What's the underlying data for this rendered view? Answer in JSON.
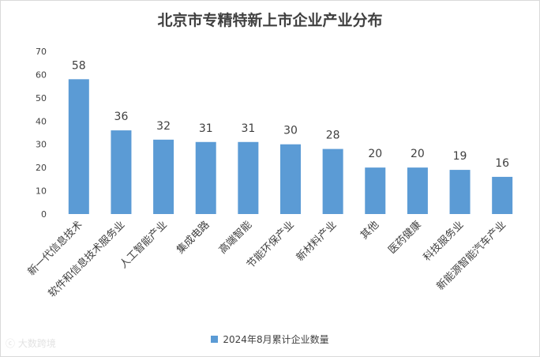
{
  "chart_data": {
    "type": "bar",
    "title": "北京市专精特新上市企业产业分布",
    "categories": [
      "新一代信息技术",
      "软件和信息技术服务业",
      "人工智能产业",
      "集成电路",
      "高端智能",
      "节能环保产业",
      "新材料产业",
      "其他",
      "医药健康",
      "科技服务业",
      "新能源智能汽车产业"
    ],
    "series": [
      {
        "name": "2024年8月累计企业数量",
        "values": [
          58,
          36,
          32,
          31,
          31,
          30,
          28,
          20,
          20,
          19,
          16
        ]
      }
    ],
    "ylim": [
      0,
      70
    ],
    "yticks": [
      0,
      10,
      20,
      30,
      40,
      50,
      60,
      70
    ],
    "grid": false,
    "legend_position": "bottom",
    "bar_color": "#5b9bd5",
    "data_labels": true
  },
  "watermark": "大数跨境"
}
